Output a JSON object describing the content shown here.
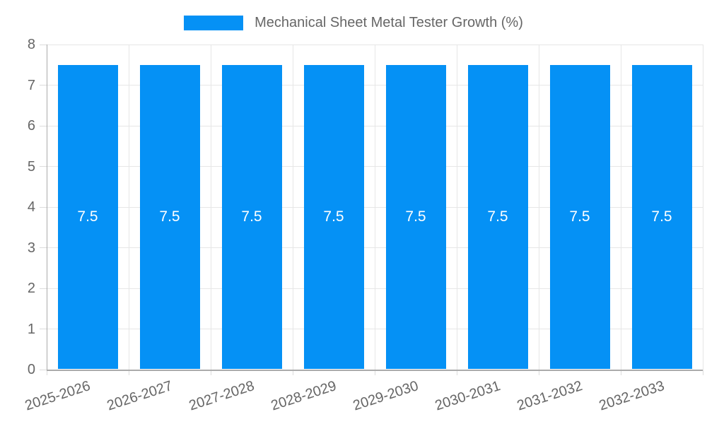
{
  "legend": {
    "label": "Mechanical Sheet Metal Tester Growth (%)",
    "swatch_color": "#0591f5"
  },
  "chart_data": {
    "type": "bar",
    "title": "Mechanical Sheet Metal Tester Growth (%)",
    "categories": [
      "2025-2026",
      "2026-2027",
      "2027-2028",
      "2028-2029",
      "2029-2030",
      "2030-2031",
      "2031-2032",
      "2032-2033"
    ],
    "values": [
      7.5,
      7.5,
      7.5,
      7.5,
      7.5,
      7.5,
      7.5,
      7.5
    ],
    "value_labels": [
      "7.5",
      "7.5",
      "7.5",
      "7.5",
      "7.5",
      "7.5",
      "7.5",
      "7.5"
    ],
    "xlabel": "",
    "ylabel": "",
    "ylim": [
      0,
      8
    ],
    "ytick_step": 1,
    "ytick_labels": [
      "0",
      "1",
      "2",
      "3",
      "4",
      "5",
      "6",
      "7",
      "8"
    ],
    "grid": true,
    "legend_position": "top-center",
    "bar_color": "#0591f5",
    "value_label_color": "#ffffff",
    "axis_text_color": "#666666",
    "grid_color": "#e6e6e6",
    "axis_line_color": "#ababab",
    "x_label_rotation_deg": -18
  }
}
